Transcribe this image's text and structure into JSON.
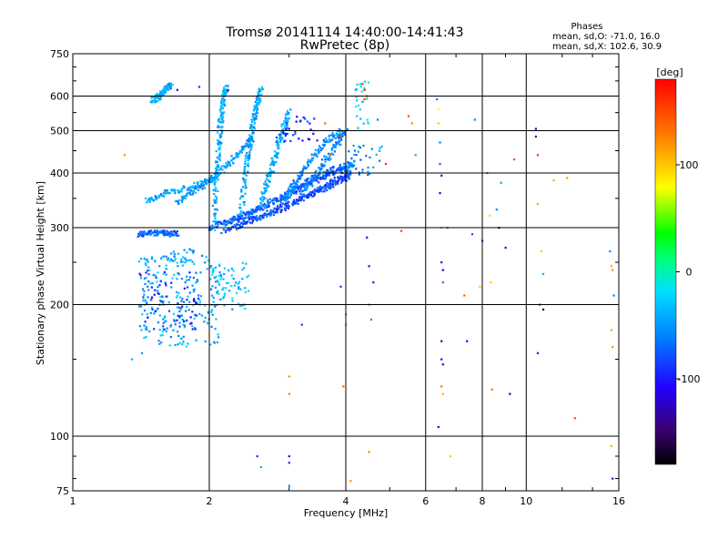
{
  "chart_data": {
    "type": "scatter",
    "title": "Tromsø 20141114 14:40:00-14:41:43",
    "subtitle": "RwPretec (8p)",
    "stats": {
      "heading": "Phases",
      "line_o": "mean, sd,O: -71.0, 16.0",
      "line_x": "mean, sd,X: 102.6, 30.9"
    },
    "xlabel": "Frequency [MHz]",
    "ylabel": "Stationary phase Virtual Height [km]",
    "x_scale": "log",
    "y_scale": "log",
    "xlim": [
      1,
      16
    ],
    "ylim": [
      75,
      750
    ],
    "x_ticks": [
      1,
      2,
      4,
      6,
      8,
      10,
      16
    ],
    "y_ticks": [
      75,
      100,
      200,
      300,
      400,
      500,
      600,
      750
    ],
    "grid": true,
    "colorbar": {
      "label": "[deg]",
      "range": [
        -180,
        180
      ],
      "ticks": [
        100,
        0,
        -100
      ]
    },
    "traces": [
      {
        "x": [
          1.45,
          1.6,
          1.8,
          2.0,
          2.1
        ],
        "y": [
          345,
          360,
          370,
          385,
          395
        ],
        "phase": -45
      },
      {
        "x": [
          1.7,
          1.9,
          2.1,
          2.3,
          2.5
        ],
        "y": [
          345,
          370,
          400,
          440,
          480
        ],
        "phase": -50
      },
      {
        "x": [
          2.0,
          2.3,
          2.6,
          3.0,
          3.4,
          3.8,
          4.2
        ],
        "y": [
          300,
          315,
          335,
          360,
          390,
          410,
          420
        ],
        "phase": -65
      },
      {
        "x": [
          2.1,
          2.4,
          2.8,
          3.2,
          3.6,
          4.0
        ],
        "y": [
          305,
          320,
          345,
          370,
          395,
          410
        ],
        "phase": -75
      },
      {
        "x": [
          2.15,
          2.5,
          2.9,
          3.3,
          3.7,
          4.1
        ],
        "y": [
          295,
          312,
          332,
          355,
          378,
          405
        ],
        "phase": -78
      },
      {
        "x": [
          2.3,
          2.6,
          3.0,
          3.4,
          3.8,
          4.1
        ],
        "y": [
          308,
          318,
          340,
          360,
          380,
          395
        ],
        "phase": -80
      },
      {
        "x": [
          2.05,
          2.07,
          2.1,
          2.12,
          2.15,
          2.18
        ],
        "y": [
          300,
          380,
          460,
          530,
          590,
          630
        ],
        "phase": -40
      },
      {
        "x": [
          2.35,
          2.4,
          2.45,
          2.5,
          2.55,
          2.6
        ],
        "y": [
          320,
          400,
          460,
          520,
          580,
          630
        ],
        "phase": -45
      },
      {
        "x": [
          2.6,
          2.7,
          2.8,
          2.9,
          3.0
        ],
        "y": [
          340,
          390,
          440,
          500,
          560
        ],
        "phase": -40
      },
      {
        "x": [
          2.9,
          3.1,
          3.3,
          3.6,
          3.9
        ],
        "y": [
          345,
          380,
          420,
          470,
          500
        ],
        "phase": -55
      },
      {
        "x": [
          3.2,
          3.5,
          3.8,
          4.0
        ],
        "y": [
          360,
          410,
          460,
          500
        ],
        "phase": -60
      },
      {
        "x": [
          1.5,
          1.55,
          1.6,
          1.65
        ],
        "y": [
          585,
          600,
          620,
          640
        ],
        "phase": -45
      },
      {
        "x": [
          1.4,
          1.5,
          1.6,
          1.7
        ],
        "y": [
          290,
          292,
          292,
          290
        ],
        "phase": -70
      }
    ],
    "clusters": [
      {
        "x": [
          1.4,
          2.1
        ],
        "y": [
          160,
          260
        ],
        "n": 210,
        "phase": -40
      },
      {
        "x": [
          1.4,
          1.9
        ],
        "y": [
          175,
          240
        ],
        "n": 90,
        "phase": -80
      },
      {
        "x": [
          2.0,
          2.45
        ],
        "y": [
          195,
          250
        ],
        "n": 70,
        "phase": -35
      },
      {
        "x": [
          1.6,
          1.85
        ],
        "y": [
          250,
          275
        ],
        "n": 20,
        "phase": -50
      },
      {
        "x": [
          4.0,
          4.8
        ],
        "y": [
          395,
          470
        ],
        "n": 40,
        "phase": -55
      },
      {
        "x": [
          4.2,
          4.5
        ],
        "y": [
          500,
          650
        ],
        "n": 25,
        "phase": -30
      },
      {
        "x": [
          2.8,
          3.6
        ],
        "y": [
          470,
          540
        ],
        "n": 35,
        "phase": -90
      }
    ],
    "points": [
      {
        "x": 1.3,
        "y": 440,
        "phase": 120
      },
      {
        "x": 1.35,
        "y": 150,
        "phase": -40
      },
      {
        "x": 1.42,
        "y": 155,
        "phase": -50
      },
      {
        "x": 1.7,
        "y": 620,
        "phase": -110
      },
      {
        "x": 1.9,
        "y": 630,
        "phase": -90
      },
      {
        "x": 2.2,
        "y": 620,
        "phase": -100
      },
      {
        "x": 2.55,
        "y": 90,
        "phase": -90
      },
      {
        "x": 2.6,
        "y": 85,
        "phase": -40
      },
      {
        "x": 3.0,
        "y": 90,
        "phase": -110
      },
      {
        "x": 3.0,
        "y": 87,
        "phase": -90
      },
      {
        "x": 3.0,
        "y": 77,
        "phase": -60
      },
      {
        "x": 3.0,
        "y": 137,
        "phase": 120
      },
      {
        "x": 3.0,
        "y": 125,
        "phase": 125
      },
      {
        "x": 3.2,
        "y": 180,
        "phase": -90
      },
      {
        "x": 3.4,
        "y": 500,
        "phase": 110
      },
      {
        "x": 3.6,
        "y": 520,
        "phase": 140
      },
      {
        "x": 3.7,
        "y": 440,
        "phase": 130
      },
      {
        "x": 3.9,
        "y": 220,
        "phase": -90
      },
      {
        "x": 3.9,
        "y": 485,
        "phase": 150
      },
      {
        "x": 4.0,
        "y": 190,
        "phase": 120
      },
      {
        "x": 4.0,
        "y": 180,
        "phase": 115
      },
      {
        "x": 4.1,
        "y": 79,
        "phase": 120
      },
      {
        "x": 3.95,
        "y": 130,
        "phase": 140
      },
      {
        "x": 4.35,
        "y": 640,
        "phase": 160
      },
      {
        "x": 4.4,
        "y": 620,
        "phase": 170
      },
      {
        "x": 4.45,
        "y": 600,
        "phase": 150
      },
      {
        "x": 4.4,
        "y": 590,
        "phase": 140
      },
      {
        "x": 4.45,
        "y": 285,
        "phase": -120
      },
      {
        "x": 4.5,
        "y": 245,
        "phase": -110
      },
      {
        "x": 4.5,
        "y": 200,
        "phase": 130
      },
      {
        "x": 4.55,
        "y": 185,
        "phase": -50
      },
      {
        "x": 4.6,
        "y": 225,
        "phase": -100
      },
      {
        "x": 4.5,
        "y": 92,
        "phase": 125
      },
      {
        "x": 4.7,
        "y": 530,
        "phase": -60
      },
      {
        "x": 4.8,
        "y": 460,
        "phase": -40
      },
      {
        "x": 4.9,
        "y": 420,
        "phase": 160
      },
      {
        "x": 5.3,
        "y": 295,
        "phase": 150
      },
      {
        "x": 5.5,
        "y": 540,
        "phase": 145
      },
      {
        "x": 5.6,
        "y": 520,
        "phase": 120
      },
      {
        "x": 5.7,
        "y": 440,
        "phase": -40
      },
      {
        "x": 6.35,
        "y": 590,
        "phase": -60
      },
      {
        "x": 6.4,
        "y": 560,
        "phase": 80
      },
      {
        "x": 6.4,
        "y": 520,
        "phase": 100
      },
      {
        "x": 6.45,
        "y": 470,
        "phase": -60
      },
      {
        "x": 6.45,
        "y": 420,
        "phase": -70
      },
      {
        "x": 6.5,
        "y": 395,
        "phase": -120
      },
      {
        "x": 6.45,
        "y": 360,
        "phase": -110
      },
      {
        "x": 6.5,
        "y": 300,
        "phase": 110
      },
      {
        "x": 6.5,
        "y": 250,
        "phase": -110
      },
      {
        "x": 6.55,
        "y": 240,
        "phase": -120
      },
      {
        "x": 6.55,
        "y": 225,
        "phase": -60
      },
      {
        "x": 6.5,
        "y": 165,
        "phase": -120
      },
      {
        "x": 6.5,
        "y": 150,
        "phase": -110
      },
      {
        "x": 6.55,
        "y": 146,
        "phase": -130
      },
      {
        "x": 6.5,
        "y": 130,
        "phase": 130
      },
      {
        "x": 6.55,
        "y": 125,
        "phase": 110
      },
      {
        "x": 6.4,
        "y": 105,
        "phase": -120
      },
      {
        "x": 6.7,
        "y": 300,
        "phase": 150
      },
      {
        "x": 6.8,
        "y": 90,
        "phase": 100
      },
      {
        "x": 7.3,
        "y": 210,
        "phase": 140
      },
      {
        "x": 7.4,
        "y": 165,
        "phase": -110
      },
      {
        "x": 7.6,
        "y": 290,
        "phase": -80
      },
      {
        "x": 7.7,
        "y": 530,
        "phase": -60
      },
      {
        "x": 7.9,
        "y": 220,
        "phase": 100
      },
      {
        "x": 8.0,
        "y": 280,
        "phase": -80
      },
      {
        "x": 8.2,
        "y": 400,
        "phase": 140
      },
      {
        "x": 8.3,
        "y": 320,
        "phase": 90
      },
      {
        "x": 8.35,
        "y": 225,
        "phase": 100
      },
      {
        "x": 8.4,
        "y": 128,
        "phase": 130
      },
      {
        "x": 8.6,
        "y": 330,
        "phase": -60
      },
      {
        "x": 8.7,
        "y": 300,
        "phase": -120
      },
      {
        "x": 8.8,
        "y": 380,
        "phase": -40
      },
      {
        "x": 9.0,
        "y": 270,
        "phase": -120
      },
      {
        "x": 9.2,
        "y": 125,
        "phase": -120
      },
      {
        "x": 9.4,
        "y": 430,
        "phase": 150
      },
      {
        "x": 10.5,
        "y": 505,
        "phase": -130
      },
      {
        "x": 10.5,
        "y": 485,
        "phase": -120
      },
      {
        "x": 10.6,
        "y": 440,
        "phase": 160
      },
      {
        "x": 10.6,
        "y": 340,
        "phase": 110
      },
      {
        "x": 10.8,
        "y": 265,
        "phase": 100
      },
      {
        "x": 10.9,
        "y": 235,
        "phase": -40
      },
      {
        "x": 10.7,
        "y": 200,
        "phase": -80
      },
      {
        "x": 10.9,
        "y": 195,
        "phase": -180
      },
      {
        "x": 10.6,
        "y": 155,
        "phase": -100
      },
      {
        "x": 11.5,
        "y": 385,
        "phase": 110
      },
      {
        "x": 12.3,
        "y": 390,
        "phase": 115
      },
      {
        "x": 12.8,
        "y": 110,
        "phase": 150
      },
      {
        "x": 15.3,
        "y": 265,
        "phase": -60
      },
      {
        "x": 15.4,
        "y": 245,
        "phase": 110
      },
      {
        "x": 15.5,
        "y": 240,
        "phase": 120
      },
      {
        "x": 15.4,
        "y": 175,
        "phase": 115
      },
      {
        "x": 15.5,
        "y": 160,
        "phase": 120
      },
      {
        "x": 15.4,
        "y": 95,
        "phase": 110
      },
      {
        "x": 15.5,
        "y": 80,
        "phase": -110
      },
      {
        "x": 15.6,
        "y": 210,
        "phase": -60
      }
    ]
  }
}
